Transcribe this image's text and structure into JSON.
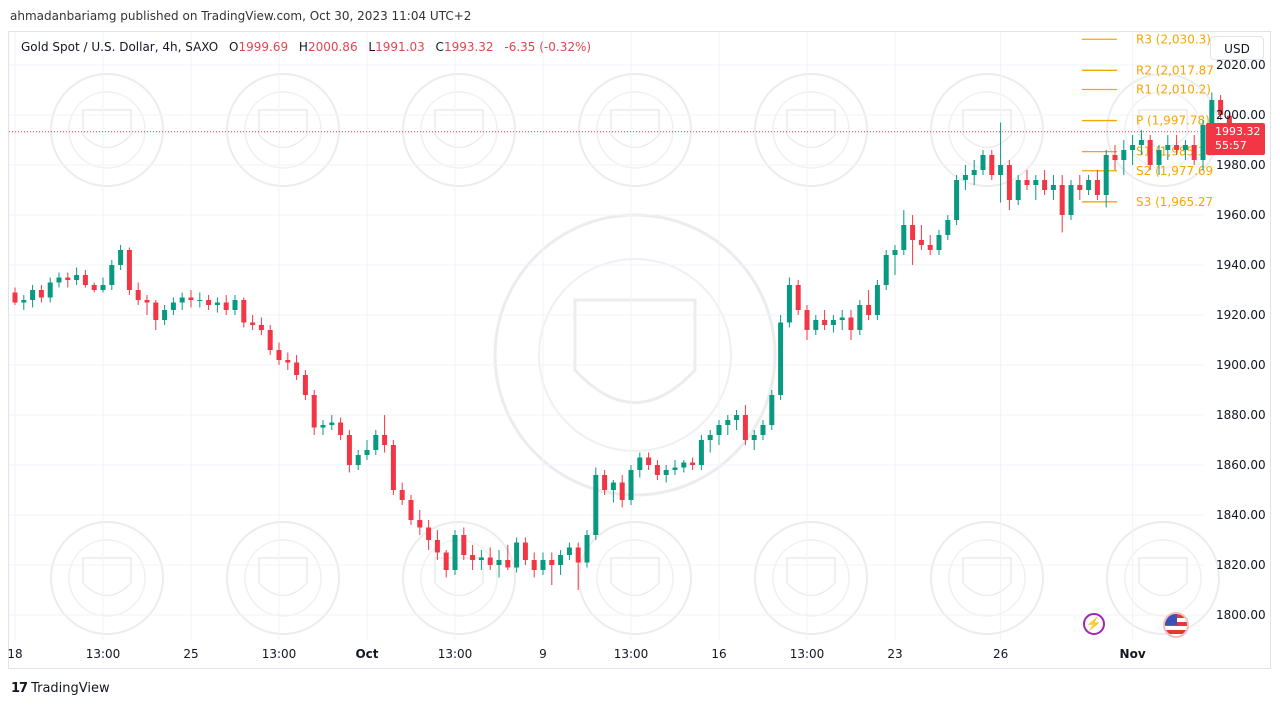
{
  "caption": "ahmadanbariamg published on TradingView.com, Oct 30, 2023 11:04 UTC+2",
  "legend": {
    "symbol": "Gold Spot / U.S. Dollar, 4h, SAXO",
    "open_k": "O",
    "open": "1999.69",
    "high_k": "H",
    "high": "2000.86",
    "low_k": "L",
    "low": "1991.03",
    "close_k": "C",
    "close": "1993.32",
    "change": "-6.35 (-0.32%)"
  },
  "currency_button": "USD",
  "price_tag": {
    "price": "1993.32",
    "countdown": "55:57"
  },
  "brand": {
    "mark": "17",
    "name": "TradingView"
  },
  "icons": {
    "events": "lightning-icon",
    "economic": "us-flag-icon"
  },
  "colors": {
    "up": "#089981",
    "down": "#f23645",
    "pivot": "#f7a600",
    "price_line": "#f23645"
  },
  "chart_data": {
    "type": "candlestick",
    "instrument": "Gold Spot / U.S. Dollar",
    "interval": "4h",
    "source": "SAXO",
    "ylim": [
      1796,
      2027
    ],
    "y_ticks": [
      "1800.00",
      "1820.00",
      "1840.00",
      "1860.00",
      "1880.00",
      "1900.00",
      "1920.00",
      "1940.00",
      "1960.00",
      "1980.00",
      "2000.00",
      "2020.00"
    ],
    "x_ticks": [
      {
        "label": "18",
        "bar": 0
      },
      {
        "label": "13:00",
        "bar": 10
      },
      {
        "label": "25",
        "bar": 20
      },
      {
        "label": "13:00",
        "bar": 30
      },
      {
        "label": "Oct",
        "bar": 40,
        "bold": true
      },
      {
        "label": "13:00",
        "bar": 50
      },
      {
        "label": "9",
        "bar": 60
      },
      {
        "label": "13:00",
        "bar": 70
      },
      {
        "label": "16",
        "bar": 80
      },
      {
        "label": "13:00",
        "bar": 90
      },
      {
        "label": "23",
        "bar": 100
      },
      {
        "label": "26",
        "bar": 112
      },
      {
        "label": "Nov",
        "bar": 127,
        "bold": true
      }
    ],
    "current_price": 1993.32,
    "pivots": [
      {
        "label": "R3 (2,030.3)",
        "value": 2030.3
      },
      {
        "label": "R2 (2,017.87",
        "value": 2017.87
      },
      {
        "label": "R1 (2,010.2)",
        "value": 2010.2
      },
      {
        "label": "P (1,997.78)",
        "value": 1997.78
      },
      {
        "label": "S1 (1,985.36",
        "value": 1985.36
      },
      {
        "label": "S2 (1,977.69",
        "value": 1977.69
      },
      {
        "label": "S3 (1,965.27",
        "value": 1965.27
      }
    ],
    "ohlc": [
      [
        1929,
        1931,
        1924,
        1925
      ],
      [
        1925,
        1928,
        1922,
        1926
      ],
      [
        1926,
        1932,
        1923,
        1930
      ],
      [
        1930,
        1932,
        1925,
        1927
      ],
      [
        1927,
        1935,
        1925,
        1933
      ],
      [
        1933,
        1937,
        1931,
        1935
      ],
      [
        1935,
        1937,
        1931,
        1934
      ],
      [
        1934,
        1939,
        1932,
        1936
      ],
      [
        1936,
        1938,
        1931,
        1932
      ],
      [
        1932,
        1933,
        1929,
        1930
      ],
      [
        1930,
        1935,
        1929,
        1932
      ],
      [
        1932,
        1942,
        1930,
        1940
      ],
      [
        1940,
        1948,
        1938,
        1946
      ],
      [
        1946,
        1947,
        1928,
        1930
      ],
      [
        1930,
        1933,
        1924,
        1926
      ],
      [
        1926,
        1928,
        1920,
        1925
      ],
      [
        1925,
        1926,
        1914,
        1918
      ],
      [
        1918,
        1924,
        1916,
        1922
      ],
      [
        1922,
        1927,
        1920,
        1925
      ],
      [
        1925,
        1929,
        1922,
        1927
      ],
      [
        1927,
        1930,
        1923,
        1926
      ],
      [
        1926,
        1929,
        1923,
        1926
      ],
      [
        1926,
        1928,
        1922,
        1924
      ],
      [
        1924,
        1927,
        1921,
        1925
      ],
      [
        1925,
        1928,
        1920,
        1922
      ],
      [
        1922,
        1928,
        1920,
        1926
      ],
      [
        1926,
        1927,
        1915,
        1917
      ],
      [
        1917,
        1920,
        1914,
        1916
      ],
      [
        1916,
        1919,
        1912,
        1914
      ],
      [
        1914,
        1916,
        1904,
        1906
      ],
      [
        1906,
        1909,
        1900,
        1902
      ],
      [
        1902,
        1905,
        1898,
        1901
      ],
      [
        1901,
        1904,
        1894,
        1896
      ],
      [
        1896,
        1898,
        1886,
        1888
      ],
      [
        1888,
        1890,
        1872,
        1875
      ],
      [
        1875,
        1878,
        1872,
        1876
      ],
      [
        1876,
        1880,
        1874,
        1877
      ],
      [
        1877,
        1879,
        1870,
        1872
      ],
      [
        1872,
        1874,
        1857,
        1860
      ],
      [
        1860,
        1866,
        1858,
        1864
      ],
      [
        1864,
        1870,
        1862,
        1866
      ],
      [
        1866,
        1874,
        1864,
        1872
      ],
      [
        1872,
        1880,
        1865,
        1868
      ],
      [
        1868,
        1870,
        1848,
        1850
      ],
      [
        1850,
        1853,
        1844,
        1846
      ],
      [
        1846,
        1848,
        1836,
        1838
      ],
      [
        1838,
        1842,
        1832,
        1835
      ],
      [
        1835,
        1838,
        1826,
        1830
      ],
      [
        1830,
        1834,
        1822,
        1825
      ],
      [
        1825,
        1826,
        1815,
        1818
      ],
      [
        1818,
        1834,
        1816,
        1832
      ],
      [
        1832,
        1835,
        1822,
        1824
      ],
      [
        1824,
        1828,
        1818,
        1822
      ],
      [
        1822,
        1826,
        1818,
        1823
      ],
      [
        1823,
        1827,
        1818,
        1820
      ],
      [
        1820,
        1826,
        1815,
        1822
      ],
      [
        1822,
        1828,
        1818,
        1819
      ],
      [
        1819,
        1831,
        1817,
        1829
      ],
      [
        1829,
        1831,
        1820,
        1822
      ],
      [
        1822,
        1825,
        1815,
        1818
      ],
      [
        1818,
        1825,
        1816,
        1822
      ],
      [
        1822,
        1825,
        1812,
        1820
      ],
      [
        1820,
        1826,
        1816,
        1824
      ],
      [
        1824,
        1829,
        1822,
        1827
      ],
      [
        1827,
        1829,
        1810,
        1821
      ],
      [
        1821,
        1834,
        1819,
        1832
      ],
      [
        1832,
        1859,
        1830,
        1856
      ],
      [
        1856,
        1858,
        1848,
        1850
      ],
      [
        1850,
        1854,
        1845,
        1853
      ],
      [
        1853,
        1856,
        1843,
        1846
      ],
      [
        1846,
        1860,
        1844,
        1858
      ],
      [
        1858,
        1865,
        1855,
        1863
      ],
      [
        1863,
        1865,
        1858,
        1860
      ],
      [
        1860,
        1862,
        1854,
        1856
      ],
      [
        1856,
        1860,
        1853,
        1858
      ],
      [
        1858,
        1862,
        1856,
        1859
      ],
      [
        1859,
        1862,
        1857,
        1861
      ],
      [
        1861,
        1863,
        1858,
        1860
      ],
      [
        1860,
        1872,
        1858,
        1870
      ],
      [
        1870,
        1874,
        1865,
        1872
      ],
      [
        1872,
        1878,
        1868,
        1876
      ],
      [
        1876,
        1880,
        1872,
        1878
      ],
      [
        1878,
        1882,
        1874,
        1880
      ],
      [
        1880,
        1884,
        1868,
        1870
      ],
      [
        1870,
        1874,
        1866,
        1872
      ],
      [
        1872,
        1878,
        1870,
        1876
      ],
      [
        1876,
        1890,
        1874,
        1888
      ],
      [
        1888,
        1920,
        1886,
        1917
      ],
      [
        1917,
        1935,
        1915,
        1932
      ],
      [
        1932,
        1934,
        1920,
        1922
      ],
      [
        1922,
        1924,
        1910,
        1914
      ],
      [
        1914,
        1920,
        1912,
        1918
      ],
      [
        1918,
        1922,
        1914,
        1916
      ],
      [
        1916,
        1920,
        1913,
        1918
      ],
      [
        1918,
        1922,
        1914,
        1919
      ],
      [
        1919,
        1922,
        1910,
        1914
      ],
      [
        1914,
        1926,
        1912,
        1924
      ],
      [
        1924,
        1930,
        1918,
        1920
      ],
      [
        1920,
        1934,
        1918,
        1932
      ],
      [
        1932,
        1946,
        1930,
        1944
      ]
    ],
    "ohlc_tail": [
      [
        1944,
        1948,
        1936,
        1946
      ],
      [
        1946,
        1962,
        1944,
        1956
      ],
      [
        1956,
        1960,
        1940,
        1950
      ],
      [
        1950,
        1956,
        1946,
        1948
      ],
      [
        1948,
        1952,
        1944,
        1946
      ],
      [
        1946,
        1954,
        1944,
        1952
      ],
      [
        1952,
        1960,
        1950,
        1958
      ],
      [
        1958,
        1976,
        1956,
        1974
      ],
      [
        1974,
        1980,
        1970,
        1976
      ],
      [
        1976,
        1982,
        1972,
        1978
      ],
      [
        1978,
        1986,
        1976,
        1984
      ],
      [
        1984,
        1986,
        1974,
        1976
      ],
      [
        1976,
        1997,
        1965,
        1980
      ],
      [
        1980,
        1982,
        1962,
        1966
      ],
      [
        1966,
        1976,
        1964,
        1974
      ],
      [
        1974,
        1978,
        1970,
        1972
      ],
      [
        1972,
        1976,
        1966,
        1974
      ],
      [
        1974,
        1978,
        1968,
        1970
      ],
      [
        1970,
        1976,
        1966,
        1972
      ],
      [
        1972,
        1976,
        1953,
        1960
      ],
      [
        1960,
        1974,
        1958,
        1972
      ],
      [
        1972,
        1976,
        1966,
        1970
      ],
      [
        1970,
        1976,
        1968,
        1974
      ],
      [
        1974,
        1978,
        1966,
        1968
      ],
      [
        1968,
        1986,
        1963,
        1984
      ],
      [
        1984,
        1988,
        1978,
        1982
      ],
      [
        1982,
        1990,
        1976,
        1986
      ],
      [
        1986,
        1992,
        1980,
        1988
      ],
      [
        1988,
        1994,
        1984,
        1990
      ],
      [
        1990,
        1992,
        1978,
        1980
      ],
      [
        1980,
        1988,
        1976,
        1986
      ],
      [
        1986,
        1992,
        1982,
        1988
      ],
      [
        1988,
        1992,
        1984,
        1986
      ],
      [
        1986,
        1990,
        1982,
        1988
      ],
      [
        1988,
        1992,
        1980,
        1982
      ],
      [
        1982,
        1998,
        1978,
        1996
      ],
      [
        1996,
        2009,
        1992,
        2006
      ],
      [
        2006,
        2008,
        1998,
        2000
      ],
      [
        1999.69,
        2000.86,
        1991.03,
        1993.32
      ]
    ]
  }
}
